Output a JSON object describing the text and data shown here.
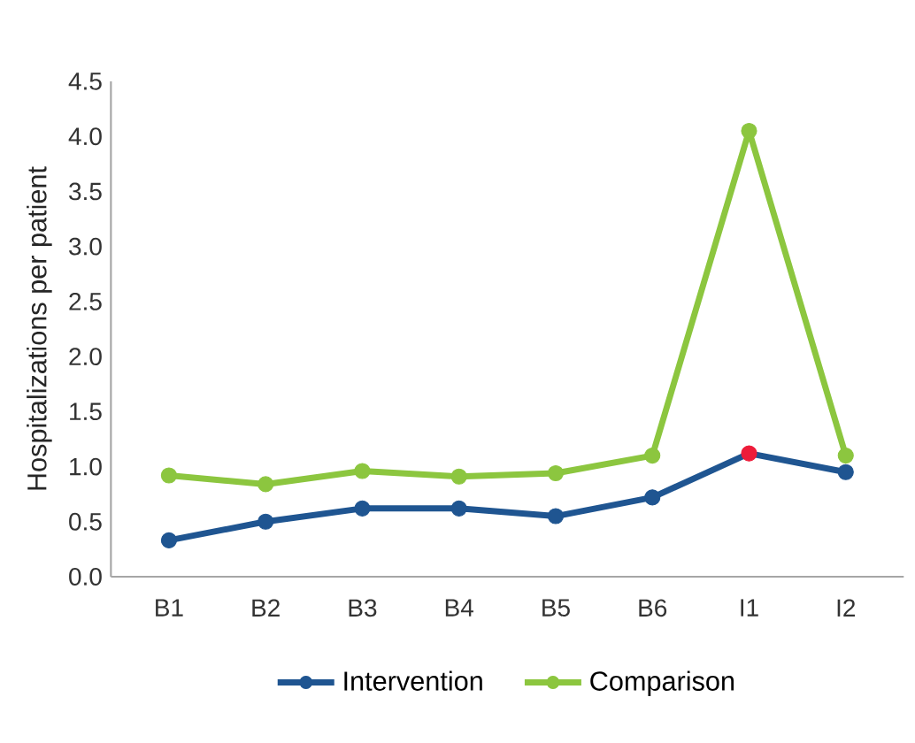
{
  "chart_data": {
    "type": "line",
    "ylabel": "Hospitalizations  per patient",
    "categories": [
      "B1",
      "B2",
      "B3",
      "B4",
      "B5",
      "B6",
      "I1",
      "I2"
    ],
    "series": [
      {
        "name": "Intervention",
        "color": "#1f5591",
        "values": [
          0.33,
          0.5,
          0.62,
          0.62,
          0.55,
          0.72,
          1.12,
          0.95
        ],
        "colors": [
          "#1f5591",
          "#1f5591",
          "#1f5591",
          "#1f5591",
          "#1f5591",
          "#1f5591",
          "#ee1c3a",
          "#1f5591"
        ]
      },
      {
        "name": "Comparison",
        "color": "#8cc63f",
        "values": [
          0.92,
          0.84,
          0.96,
          0.91,
          0.94,
          1.1,
          4.05,
          1.1
        ]
      }
    ],
    "ylim": [
      0,
      4.5
    ],
    "yticks": [
      {
        "value": 0,
        "label": "0.0"
      },
      {
        "value": 0.5,
        "label": "0.5"
      },
      {
        "value": 1,
        "label": "1.0"
      },
      {
        "value": 1.5,
        "label": "1.5"
      },
      {
        "value": 2,
        "label": "2.0"
      },
      {
        "value": 2.5,
        "label": "2.5"
      },
      {
        "value": 3,
        "label": "3.0"
      },
      {
        "value": 3.5,
        "label": "3.5"
      },
      {
        "value": 4,
        "label": "4.0"
      },
      {
        "value": 4.5,
        "label": "4.5"
      }
    ],
    "grid": false,
    "legend": "bottom",
    "marker": "circle",
    "line_style": "solid"
  }
}
